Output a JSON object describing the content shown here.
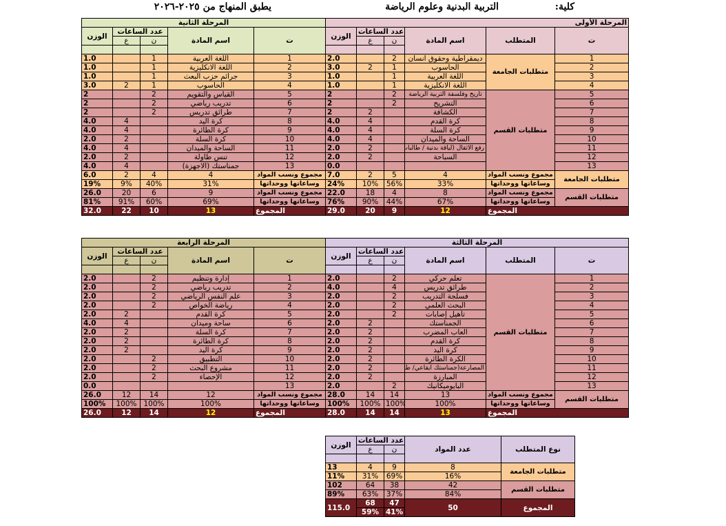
{
  "header": {
    "college_label": "كلية:",
    "college_name": "التربية البدنية وعلوم الرياضة",
    "applies": "يطبق المنهاج من ٢٠٢٥-٢٠٢٦"
  },
  "col_labels": {
    "t": "ت",
    "requirement": "المتطلب",
    "subject": "اسم المادة",
    "hours": "عدد الساعات",
    "n": "ن",
    "a": "ع",
    "weight": "الوزن",
    "req_type": "نوع المتطلب",
    "subjects_count": "عدد المواد"
  },
  "labels": {
    "univ_req": "متطلبات الجامعة",
    "dept_req": "متطلبات القسم",
    "sum_line1": "مجموع ونسب المواد",
    "sum_line2": "وساعاتها ووحداتها",
    "total": "المجموع"
  },
  "stage1": {
    "title": "المرحلة الأولى",
    "rows": [
      {
        "t": "1",
        "name": "ديمقراطية وحقوق انسان",
        "n": "2",
        "a": "",
        "w": "2.0"
      },
      {
        "t": "2",
        "name": "الحاسوب",
        "n": "1",
        "a": "2",
        "w": "3.0"
      },
      {
        "t": "3",
        "name": "اللغة العربية",
        "n": "1",
        "a": "",
        "w": "1.0"
      },
      {
        "t": "4",
        "name": "اللغة الانكليزية",
        "n": "1",
        "a": "",
        "w": "1.0"
      },
      {
        "t": "5",
        "name": "تاريخ وفلسفة التربية الرياضة",
        "n": "2",
        "a": "",
        "w": "2"
      },
      {
        "t": "6",
        "name": "التشريح",
        "n": "2",
        "a": "",
        "w": "2"
      },
      {
        "t": "7",
        "name": "الكشافة",
        "n": "",
        "a": "2",
        "w": "2"
      },
      {
        "t": "8",
        "name": "كرة القدم",
        "n": "",
        "a": "4",
        "w": "4.0"
      },
      {
        "t": "9",
        "name": "كرة السلة",
        "n": "",
        "a": "4",
        "w": "4.0"
      },
      {
        "t": "10",
        "name": "الساحة والميدان",
        "n": "",
        "a": "4",
        "w": "4.0"
      },
      {
        "t": "11",
        "name": "رفع الاثقال (لياقة بدنية / طالبات)",
        "n": "",
        "a": "2",
        "w": "2.0"
      },
      {
        "t": "12",
        "name": "السباحة",
        "n": "",
        "a": "2",
        "w": "2.0"
      },
      {
        "t": "13",
        "name": "",
        "n": "",
        "a": "",
        "w": "0.0"
      }
    ],
    "univ_sum": {
      "count": "4",
      "n": "5",
      "a": "2",
      "w": "7.0"
    },
    "univ_pct": {
      "count": "33%",
      "n": "56%",
      "a": "10%",
      "w": "24%"
    },
    "dept_sum": {
      "count": "8",
      "n": "4",
      "a": "18",
      "w": "22.0"
    },
    "dept_pct": {
      "count": "67%",
      "n": "44%",
      "a": "90%",
      "w": "76%"
    },
    "total": {
      "count": "12",
      "n": "9",
      "a": "20",
      "w": "29.0"
    }
  },
  "stage2": {
    "title": "المرحلة الثانية",
    "rows": [
      {
        "t": "1",
        "name": "اللغة العربية",
        "n": "1",
        "a": "",
        "w": "1.0"
      },
      {
        "t": "2",
        "name": "اللغة الانكليزية",
        "n": "1",
        "a": "",
        "w": "1.0"
      },
      {
        "t": "3",
        "name": "جرائم حزب البعث",
        "n": "1",
        "a": "",
        "w": "1.0"
      },
      {
        "t": "4",
        "name": "الحاسوب",
        "n": "1",
        "a": "2",
        "w": "3.0"
      },
      {
        "t": "5",
        "name": "القياس والتقويم",
        "n": "2",
        "a": "",
        "w": "2"
      },
      {
        "t": "6",
        "name": "تدريب رياضي",
        "n": "2",
        "a": "",
        "w": "2"
      },
      {
        "t": "7",
        "name": "طرائق تدريس",
        "n": "2",
        "a": "",
        "w": "2"
      },
      {
        "t": "8",
        "name": "كرة اليد",
        "n": "",
        "a": "4",
        "w": "4.0"
      },
      {
        "t": "9",
        "name": "كرة الطائرة",
        "n": "",
        "a": "4",
        "w": "4.0"
      },
      {
        "t": "10",
        "name": "كرة السلة",
        "n": "",
        "a": "2",
        "w": "2.0"
      },
      {
        "t": "11",
        "name": "الساحة والميدان",
        "n": "",
        "a": "4",
        "w": "4.0"
      },
      {
        "t": "12",
        "name": "تنس طاولة",
        "n": "",
        "a": "2",
        "w": "2.0"
      },
      {
        "t": "13",
        "name": "جمناستك (الاجهزة)",
        "n": "",
        "a": "4",
        "w": "4.0"
      }
    ],
    "univ_sum": {
      "count": "4",
      "n": "4",
      "a": "2",
      "w": "6.0"
    },
    "univ_pct": {
      "count": "31%",
      "n": "40%",
      "a": "9%",
      "w": "19%"
    },
    "dept_sum": {
      "count": "9",
      "n": "6",
      "a": "20",
      "w": "26.0"
    },
    "dept_pct": {
      "count": "69%",
      "n": "60%",
      "a": "91%",
      "w": "81%"
    },
    "total": {
      "count": "13",
      "n": "10",
      "a": "22",
      "w": "32.0"
    }
  },
  "stage3": {
    "title": "المرحلة الثالثة",
    "rows": [
      {
        "t": "1",
        "name": "تعلم حركي",
        "n": "2",
        "a": "",
        "w": "2.0"
      },
      {
        "t": "2",
        "name": "طرائق تدريس",
        "n": "4",
        "a": "",
        "w": "4.0"
      },
      {
        "t": "3",
        "name": "فسلجة التدريب",
        "n": "2",
        "a": "",
        "w": "2.0"
      },
      {
        "t": "4",
        "name": "البحث العلمي",
        "n": "2",
        "a": "",
        "w": "2.0"
      },
      {
        "t": "5",
        "name": "تأهيل إصابات",
        "n": "2",
        "a": "",
        "w": "2.0"
      },
      {
        "t": "6",
        "name": "الجمناستك",
        "n": "",
        "a": "2",
        "w": "2.0"
      },
      {
        "t": "7",
        "name": "العاب المضرب",
        "n": "",
        "a": "2",
        "w": "2.0"
      },
      {
        "t": "8",
        "name": "كرة القدم",
        "n": "",
        "a": "2",
        "w": "2.0"
      },
      {
        "t": "9",
        "name": "كرة اليد",
        "n": "",
        "a": "2",
        "w": "2.0"
      },
      {
        "t": "10",
        "name": "الكرة الطائرة",
        "n": "",
        "a": "2",
        "w": "2.0"
      },
      {
        "t": "11",
        "name": "المصارعة(جمناستك ايقاعي/ طالبات)",
        "n": "",
        "a": "2",
        "w": "2.0"
      },
      {
        "t": "12",
        "name": "المبارزة",
        "n": "",
        "a": "2",
        "w": "2.0"
      },
      {
        "t": "13",
        "name": "البايوميكانيك",
        "n": "2",
        "a": "",
        "w": "2.0"
      }
    ],
    "dept_sum": {
      "count": "13",
      "n": "14",
      "a": "14",
      "w": "28.0"
    },
    "dept_pct": {
      "count": "100%",
      "n": "100%",
      "a": "100%",
      "w": "100%"
    },
    "total": {
      "count": "13",
      "n": "14",
      "a": "14",
      "w": "28.0"
    }
  },
  "stage4": {
    "title": "المرحلة الرابعة",
    "rows": [
      {
        "t": "1",
        "name": "إدارة وتنظيم",
        "n": "2",
        "a": "",
        "w": "2.0"
      },
      {
        "t": "2",
        "name": "تدريب رياضي",
        "n": "2",
        "a": "",
        "w": "2.0"
      },
      {
        "t": "3",
        "name": "علم النفس الرياضي",
        "n": "2",
        "a": "",
        "w": "2.0"
      },
      {
        "t": "4",
        "name": "رياضة الخواص",
        "n": "2",
        "a": "",
        "w": "2.0"
      },
      {
        "t": "5",
        "name": "كرة القدم",
        "n": "",
        "a": "2",
        "w": "2.0"
      },
      {
        "t": "6",
        "name": "ساحة وميدان",
        "n": "",
        "a": "4",
        "w": "4.0"
      },
      {
        "t": "7",
        "name": "كرة السلة",
        "n": "",
        "a": "2",
        "w": "2.0"
      },
      {
        "t": "8",
        "name": "كرة الطائرة",
        "n": "",
        "a": "2",
        "w": "2.0"
      },
      {
        "t": "9",
        "name": "كرة اليد",
        "n": "",
        "a": "2",
        "w": "2.0"
      },
      {
        "t": "10",
        "name": "التطبيق",
        "n": "2",
        "a": "",
        "w": "2.0"
      },
      {
        "t": "11",
        "name": "مشروع البحث",
        "n": "2",
        "a": "",
        "w": "2.0"
      },
      {
        "t": "12",
        "name": "الإحصاء",
        "n": "2",
        "a": "",
        "w": "2.0"
      },
      {
        "t": "13",
        "name": "",
        "n": "",
        "a": "",
        "w": "0.0"
      }
    ],
    "dept_sum": {
      "count": "12",
      "n": "14",
      "a": "12",
      "w": "26.0"
    },
    "dept_pct": {
      "count": "100%",
      "n": "100%",
      "a": "100%",
      "w": "100%"
    },
    "total": {
      "count": "12",
      "n": "14",
      "a": "12",
      "w": "26.0"
    }
  },
  "summary": {
    "univ": {
      "count": "8",
      "n": "9",
      "a": "4",
      "w": "13"
    },
    "univ_pct": {
      "count": "16%",
      "n": "69%",
      "a": "31%",
      "w": "11%"
    },
    "dept": {
      "count": "42",
      "n": "38",
      "a": "64",
      "w": "102"
    },
    "dept_pct": {
      "count": "84%",
      "n": "37%",
      "a": "63%",
      "w": "89%"
    },
    "total": {
      "count": "50",
      "n": "47",
      "a": "68",
      "w": "115.0"
    },
    "total_pct": {
      "n": "41%",
      "a": "59%"
    }
  }
}
